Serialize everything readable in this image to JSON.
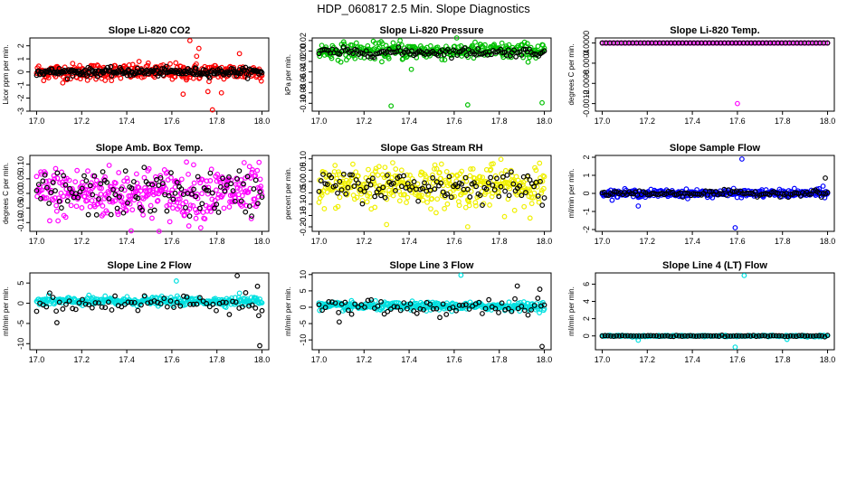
{
  "title": "HDP_060817  2.5 Min. Slope Diagnostics",
  "chart_data": [
    {
      "type": "scatter",
      "title": "Slope Li-820 CO2",
      "ylabel": "Licor ppm per min.",
      "xlim": [
        16.97,
        18.03
      ],
      "ylim": [
        -3,
        2.6
      ],
      "xticks": [
        17.0,
        17.2,
        17.4,
        17.6,
        17.8,
        18.0
      ],
      "yticks": [
        -3,
        -2,
        -1,
        0,
        1,
        2
      ],
      "ytick_labels": [
        "-3",
        "-2",
        "-1",
        "0",
        "1",
        "2"
      ],
      "series": [
        {
          "name": "red",
          "color": "#ff0000",
          "noise": 0.32,
          "x_range": [
            17.0,
            18.0
          ],
          "n": 320,
          "extra_x": [
            17.68,
            17.72,
            17.65,
            17.78,
            17.76,
            17.82,
            17.71,
            17.9
          ],
          "extra_y": [
            2.4,
            1.8,
            -1.7,
            -2.9,
            -1.5,
            -1.6,
            1.2,
            1.4
          ]
        },
        {
          "name": "black",
          "color": "#000000",
          "noise": 0.15,
          "x_range": [
            17.0,
            18.0
          ],
          "n": 220
        }
      ]
    },
    {
      "type": "scatter",
      "title": "Slope Li-820 Pressure",
      "ylabel": "kPa per min.",
      "xlim": [
        16.97,
        18.03
      ],
      "ylim": [
        -0.115,
        0.025
      ],
      "xticks": [
        17.0,
        17.2,
        17.4,
        17.6,
        17.8,
        18.0
      ],
      "yticks": [
        -0.1,
        -0.08,
        -0.06,
        -0.04,
        -0.02,
        0.0,
        0.02
      ],
      "ytick_labels": [
        "-0.10",
        "-0.08",
        "-0.06",
        "-0.04",
        "-0.02",
        "0.00",
        "0.02"
      ],
      "series": [
        {
          "name": "green",
          "color": "#00c000",
          "noise": 0.008,
          "center": 0.0,
          "x_range": [
            17.0,
            18.0
          ],
          "n": 320,
          "extra_x": [
            17.32,
            17.66,
            17.99,
            17.36,
            17.41
          ],
          "extra_y": [
            -0.105,
            -0.103,
            -0.099,
            0.02,
            -0.035
          ]
        },
        {
          "name": "black",
          "color": "#000000",
          "noise": 0.004,
          "center": -0.002,
          "x_range": [
            17.0,
            18.0
          ],
          "n": 120
        }
      ]
    },
    {
      "type": "scatter",
      "title": "Slope Li-820 Temp.",
      "ylabel": "degrees C per min.",
      "xlim": [
        16.97,
        18.03
      ],
      "ylim": [
        -0.00135,
        0.0001
      ],
      "xticks": [
        17.0,
        17.2,
        17.4,
        17.6,
        17.8,
        18.0
      ],
      "yticks": [
        -0.0012,
        -0.0008,
        -0.0004,
        0.0
      ],
      "ytick_labels": [
        "-0.0012",
        "-0.0008",
        "-0.0004",
        "0.0000"
      ],
      "series": [
        {
          "name": "magenta",
          "color": "#ff00ff",
          "noise": 0.0,
          "center": 0.0,
          "x_range": [
            17.0,
            18.0
          ],
          "n": 120,
          "extra_x": [
            17.6
          ],
          "extra_y": [
            -0.0012
          ]
        },
        {
          "name": "black",
          "color": "#000000",
          "noise": 0.0,
          "center": 0.0,
          "x_range": [
            17.0,
            18.0
          ],
          "n": 60
        }
      ]
    },
    {
      "type": "scatter",
      "title": "Slope Amb. Box Temp.",
      "ylabel": "degrees C per min.",
      "xlim": [
        16.97,
        18.03
      ],
      "ylim": [
        -0.13,
        0.13
      ],
      "xticks": [
        17.0,
        17.2,
        17.4,
        17.6,
        17.8,
        18.0
      ],
      "yticks": [
        -0.1,
        -0.05,
        0.0,
        0.05,
        0.1
      ],
      "ytick_labels": [
        "-0.10",
        "-0.05",
        "0.00",
        "0.05",
        "0.10"
      ],
      "series": [
        {
          "name": "magenta",
          "color": "#ff00ff",
          "noise": 0.045,
          "center": 0.0,
          "x_range": [
            17.0,
            18.0
          ],
          "n": 380
        },
        {
          "name": "black",
          "color": "#000000",
          "noise": 0.04,
          "center": 0.0,
          "x_range": [
            17.0,
            18.0
          ],
          "n": 110
        }
      ]
    },
    {
      "type": "scatter",
      "title": "Slope Gas Stream RH",
      "ylabel": "percent per min.",
      "xlim": [
        16.97,
        18.03
      ],
      "ylim": [
        -0.22,
        0.115
      ],
      "xticks": [
        17.0,
        17.2,
        17.4,
        17.6,
        17.8,
        18.0
      ],
      "yticks": [
        -0.2,
        -0.15,
        -0.1,
        -0.05,
        0.0,
        0.05,
        0.1
      ],
      "ytick_labels": [
        "-0.20",
        "-0.15",
        "-0.10",
        "-0.05",
        "0.00",
        "0.05",
        "0.10"
      ],
      "series": [
        {
          "name": "yellow",
          "color": "#f0f000",
          "noise": 0.045,
          "center": -0.02,
          "x_range": [
            17.0,
            18.0
          ],
          "n": 380,
          "extra_x": [
            17.66,
            17.3
          ],
          "extra_y": [
            -0.2,
            -0.19
          ]
        },
        {
          "name": "black",
          "color": "#000000",
          "noise": 0.03,
          "center": -0.02,
          "x_range": [
            17.0,
            18.0
          ],
          "n": 110
        }
      ]
    },
    {
      "type": "scatter",
      "title": "Slope Sample Flow",
      "ylabel": "ml/min per min.",
      "xlim": [
        16.97,
        18.03
      ],
      "ylim": [
        -2.1,
        2.1
      ],
      "xticks": [
        17.0,
        17.2,
        17.4,
        17.6,
        17.8,
        18.0
      ],
      "yticks": [
        -2,
        -1,
        0,
        1,
        2
      ],
      "ytick_labels": [
        "-2",
        "-1",
        "0",
        "1",
        "2"
      ],
      "series": [
        {
          "name": "blue",
          "color": "#0000ff",
          "noise": 0.1,
          "center": 0.0,
          "x_range": [
            17.0,
            18.0
          ],
          "n": 320,
          "extra_x": [
            17.62,
            17.59,
            17.16,
            17.98
          ],
          "extra_y": [
            1.9,
            -1.9,
            -0.7,
            0.4
          ]
        },
        {
          "name": "black",
          "color": "#000000",
          "noise": 0.08,
          "center": 0.0,
          "x_range": [
            17.0,
            18.0
          ],
          "n": 110,
          "extra_x": [
            17.99
          ],
          "extra_y": [
            0.85
          ]
        }
      ]
    },
    {
      "type": "scatter",
      "title": "Slope Line 2 Flow",
      "ylabel": "ml/min per min.",
      "xlim": [
        16.97,
        18.03
      ],
      "ylim": [
        -11.5,
        7.5
      ],
      "xticks": [
        17.0,
        17.2,
        17.4,
        17.6,
        17.8,
        18.0
      ],
      "yticks": [
        -10,
        -5,
        0,
        5
      ],
      "ytick_labels": [
        "-10",
        "-5",
        "0",
        "5"
      ],
      "series": [
        {
          "name": "cyan",
          "color": "#00e0e0",
          "noise": 0.5,
          "center": 0.5,
          "x_range": [
            17.0,
            18.0
          ],
          "n": 320,
          "extra_x": [
            17.62,
            17.9
          ],
          "extra_y": [
            5.5,
            2.5
          ]
        },
        {
          "name": "black",
          "color": "#000000",
          "noise": 1.2,
          "center": 0.0,
          "x_range": [
            17.0,
            18.0
          ],
          "n": 70,
          "extra_x": [
            17.09,
            17.89,
            17.98,
            17.99
          ],
          "extra_y": [
            -4.8,
            6.8,
            4.2,
            -10.5
          ]
        }
      ]
    },
    {
      "type": "scatter",
      "title": "Slope Line 3 Flow",
      "ylabel": "ml/min per min.",
      "xlim": [
        16.97,
        18.03
      ],
      "ylim": [
        -13,
        10.5
      ],
      "xticks": [
        17.0,
        17.2,
        17.4,
        17.6,
        17.8,
        18.0
      ],
      "yticks": [
        -10,
        -5,
        0,
        5,
        10
      ],
      "ytick_labels": [
        "-10",
        "-5",
        "0",
        "5",
        "10"
      ],
      "series": [
        {
          "name": "cyan",
          "color": "#00e0e0",
          "noise": 0.6,
          "center": 0.3,
          "x_range": [
            17.0,
            18.0
          ],
          "n": 320,
          "extra_x": [
            17.63
          ],
          "extra_y": [
            9.8
          ]
        },
        {
          "name": "black",
          "color": "#000000",
          "noise": 1.3,
          "center": 0.0,
          "x_range": [
            17.0,
            18.0
          ],
          "n": 70,
          "extra_x": [
            17.09,
            17.88,
            17.98,
            17.99
          ],
          "extra_y": [
            -4.5,
            6.5,
            5.5,
            -12.0
          ]
        }
      ]
    },
    {
      "type": "scatter",
      "title": "Slope Line 4 (LT) Flow",
      "ylabel": "ml/min per min.",
      "xlim": [
        16.97,
        18.03
      ],
      "ylim": [
        -1.6,
        7.3
      ],
      "xticks": [
        17.0,
        17.2,
        17.4,
        17.6,
        17.8,
        18.0
      ],
      "yticks": [
        0,
        2,
        4,
        6
      ],
      "ytick_labels": [
        "0",
        "2",
        "4",
        "6"
      ],
      "series": [
        {
          "name": "cyan",
          "color": "#00e0e0",
          "noise": 0.05,
          "center": 0.0,
          "x_range": [
            17.0,
            18.0
          ],
          "n": 180,
          "extra_x": [
            17.63,
            17.59,
            17.16,
            17.82
          ],
          "extra_y": [
            7.0,
            -1.3,
            -0.5,
            -0.4
          ]
        },
        {
          "name": "black",
          "color": "#000000",
          "noise": 0.03,
          "center": 0.0,
          "x_range": [
            17.0,
            18.0
          ],
          "n": 80
        }
      ]
    }
  ]
}
